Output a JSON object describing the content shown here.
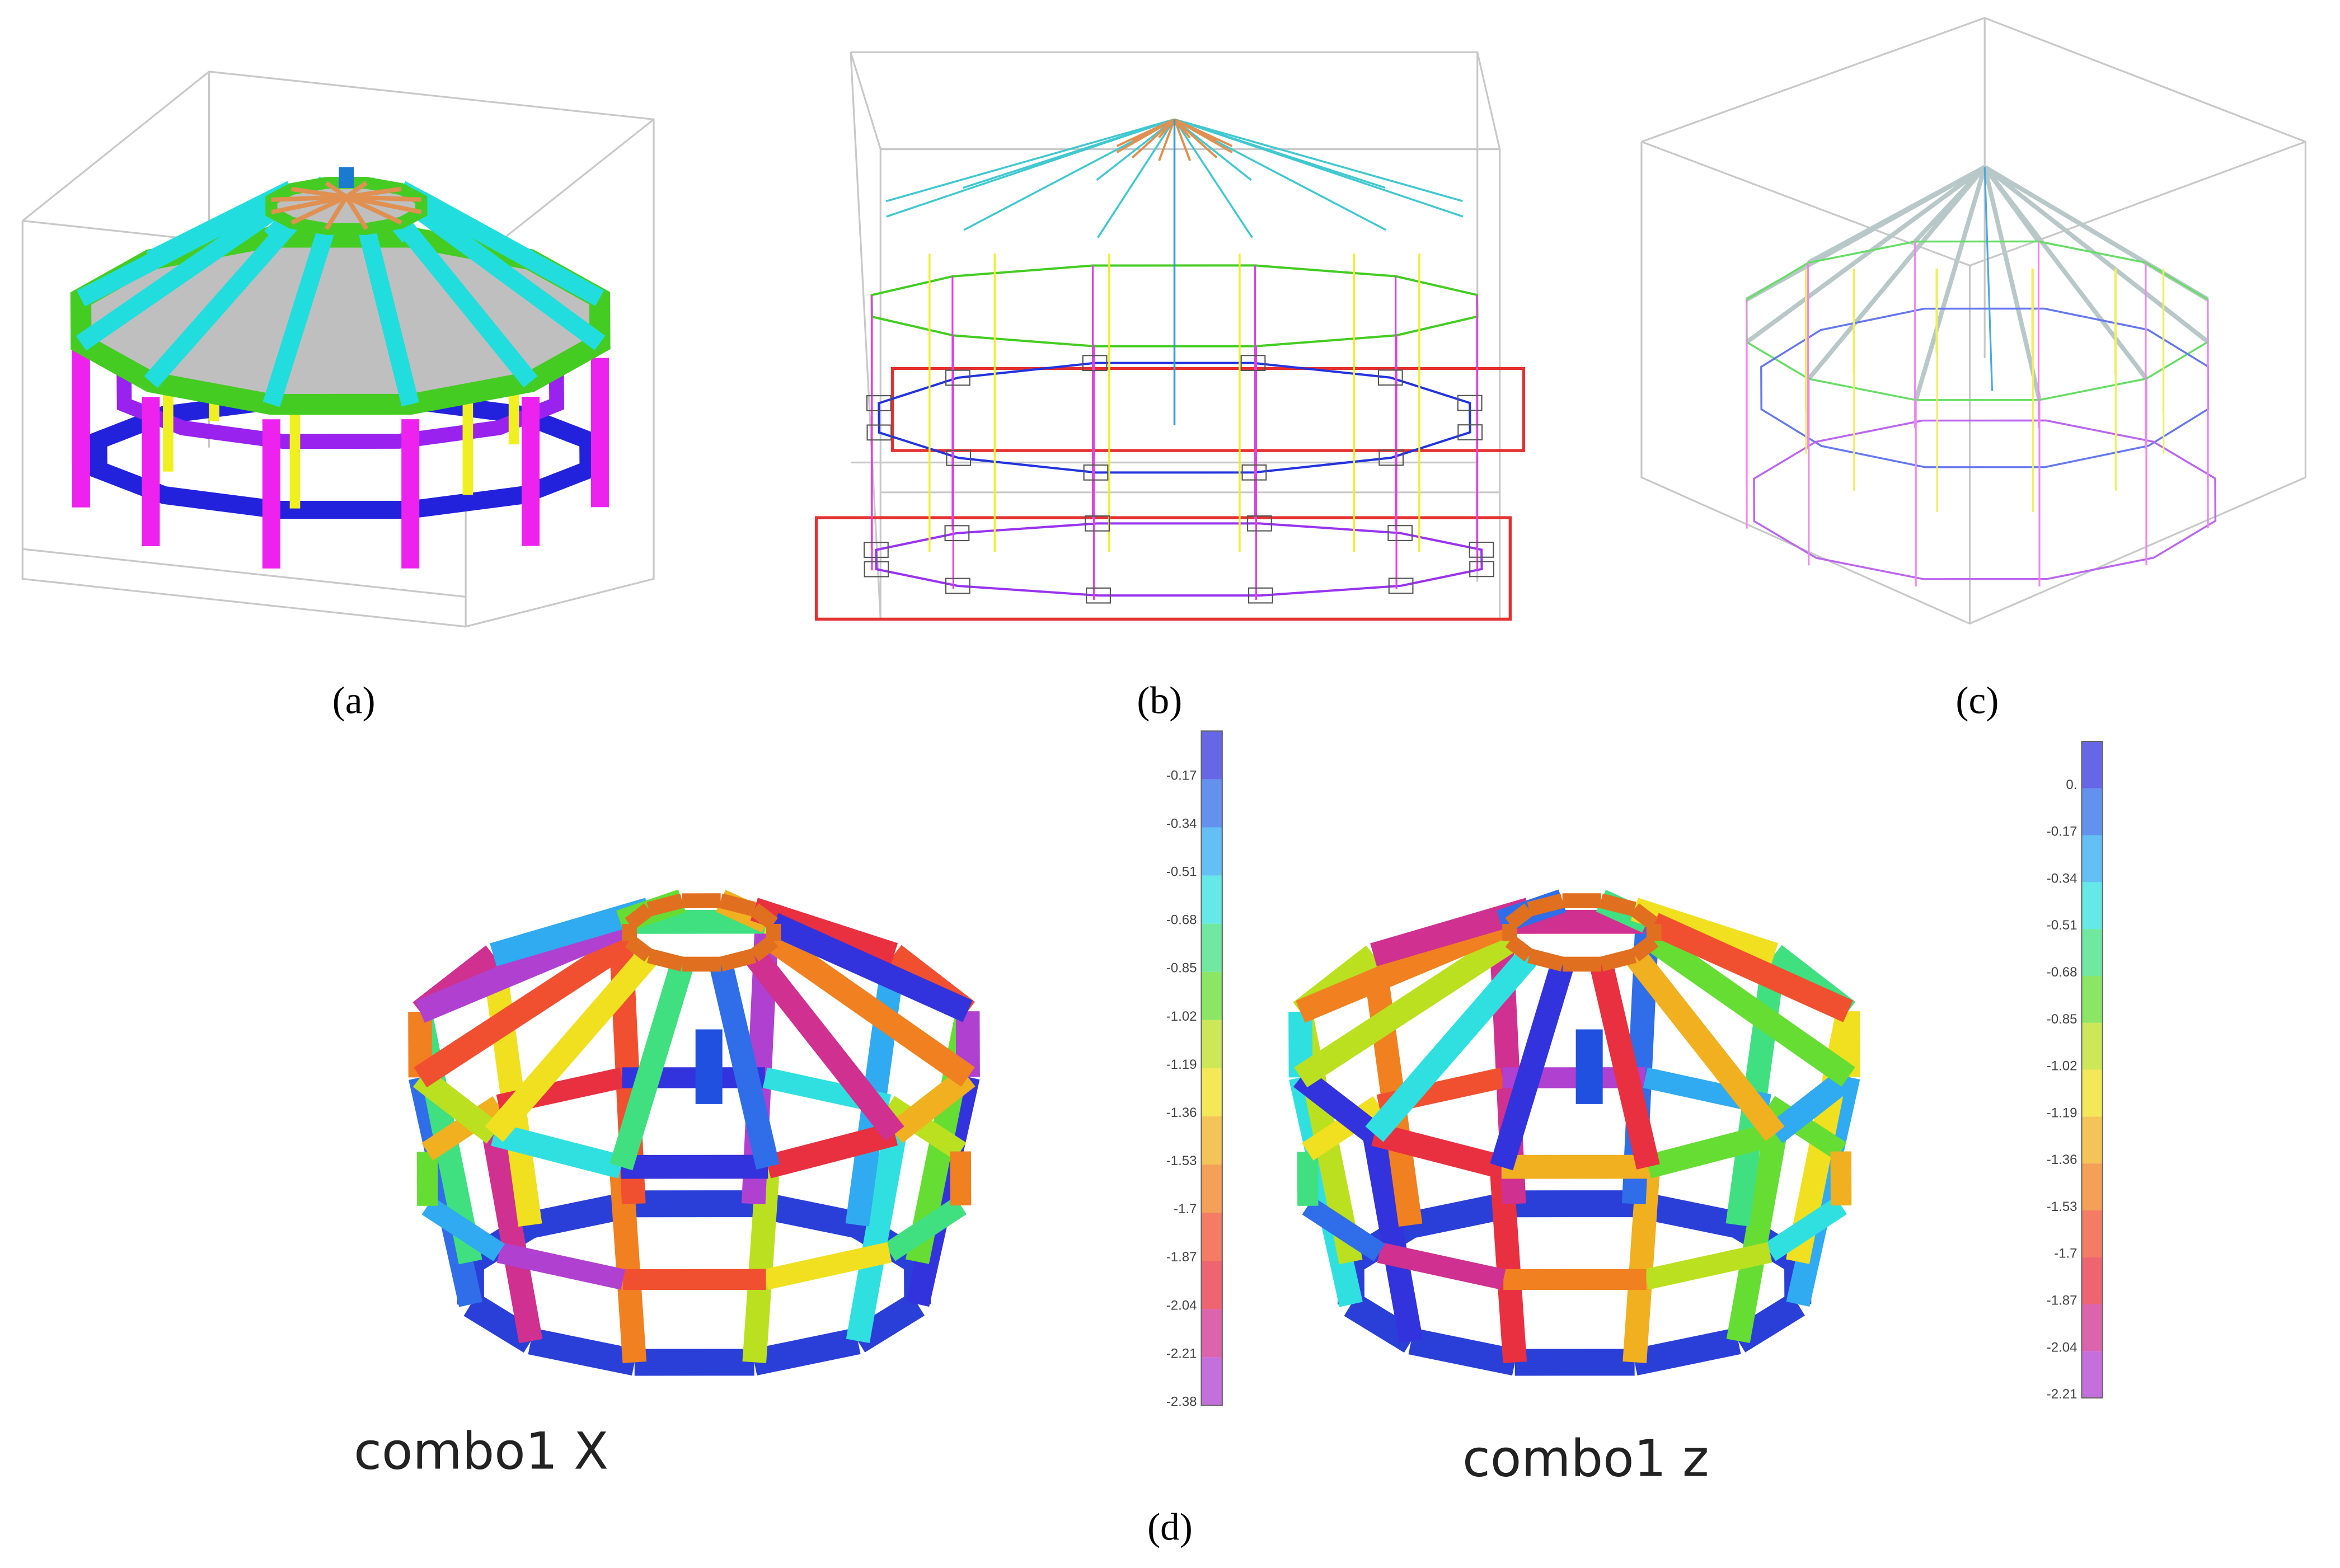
{
  "captions": {
    "a": "(a)",
    "b": "(b)",
    "c": "(c)",
    "d": "(d)"
  },
  "plots": [
    {
      "label": "combo1 X",
      "colorbar": [
        "-0.17",
        "-0.34",
        "-0.51",
        "-0.68",
        "-0.85",
        "-1.02",
        "-1.19",
        "-1.36",
        "-1.53",
        "-1.7",
        "-1.87",
        "-2.04",
        "-2.21",
        "-2.38"
      ]
    },
    {
      "label": "combo1  z",
      "colorbar": [
        "0.",
        "-0.17",
        "-0.34",
        "-0.51",
        "-0.68",
        "-0.85",
        "-1.02",
        "-1.19",
        "-1.36",
        "-1.53",
        "-1.7",
        "-1.87",
        "-2.04",
        "-2.21"
      ]
    }
  ]
}
